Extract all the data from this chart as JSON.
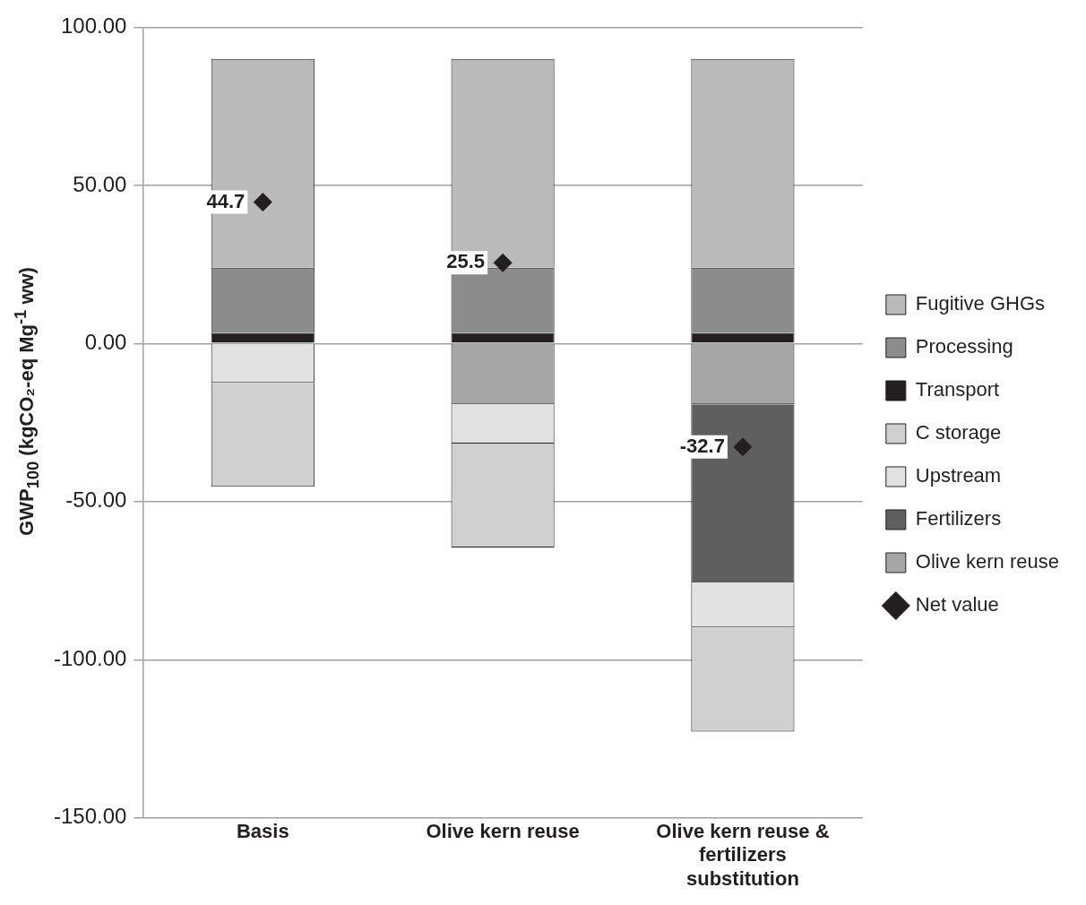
{
  "chart_data": {
    "type": "bar",
    "stacked": true,
    "ylabel": "GWP$_{100}$ (kgCO₂-eq Mg$^{-1}$ ww)",
    "categories": [
      "Basis",
      "Olive kern reuse",
      "Olive kern reuse & fertilizers substitution"
    ],
    "series": [
      {
        "name": "Olive kern reuse",
        "color": "#a6a6a6",
        "values": [
          null,
          -19.2,
          -19.2
        ]
      },
      {
        "name": "Fertilizers",
        "color": "#5f5f5f",
        "values": [
          null,
          null,
          -56.4
        ]
      },
      {
        "name": "Upstream",
        "color": "#e2e2e2",
        "values": [
          -12.4,
          -12.4,
          -14.2
        ]
      },
      {
        "name": "C storage",
        "color": "#d0d0d0",
        "values": [
          -32.9,
          -32.9,
          -32.9
        ]
      },
      {
        "name": "Transport",
        "color": "#231f20",
        "values": [
          3.3,
          3.3,
          3.3
        ]
      },
      {
        "name": "Processing",
        "color": "#8c8c8c",
        "values": [
          20.7,
          20.7,
          20.7
        ]
      },
      {
        "name": "Fugitive GHGs",
        "color": "#bababa",
        "values": [
          66,
          66,
          66
        ]
      },
      {
        "name": "Net value",
        "type": "scatter",
        "marker": "diamond",
        "color": "#231f20",
        "x": [
          "Basis",
          "Olive kern reuse",
          "Olive kern reuse & fertilizers substitution"
        ],
        "values": [
          44.7,
          25.5,
          -32.7
        ],
        "value_labels": [
          "44.7",
          "25.5",
          "-32.7"
        ]
      }
    ],
    "ylim": [
      -150,
      100
    ],
    "yticks": [
      {
        "value": -150,
        "label": "-150.00"
      },
      {
        "value": -100,
        "label": "-100.00"
      },
      {
        "value": -50,
        "label": "-50.00"
      },
      {
        "value": 0,
        "label": "0.00"
      },
      {
        "value": 50,
        "label": "50.00"
      },
      {
        "value": 100,
        "label": "100.00"
      }
    ],
    "grid": "y",
    "legend": "right"
  }
}
